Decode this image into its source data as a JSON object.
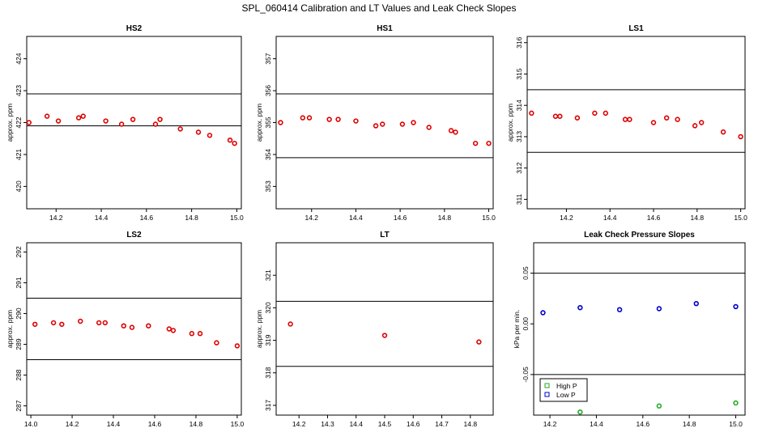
{
  "title": "SPL_060414  Calibration and LT Values and Leak Check Slopes",
  "chart_data": [
    {
      "type": "scatter",
      "title": "HS2",
      "ylabel": "approx. ppm",
      "xlim": [
        14.07,
        15.02
      ],
      "ylim": [
        419.3,
        424.7
      ],
      "xticks": [
        14.2,
        14.4,
        14.6,
        14.8,
        15.0
      ],
      "yticks": [
        420,
        421,
        422,
        423,
        424
      ],
      "hlines": [
        422.9,
        421.9
      ],
      "series": [
        {
          "color": "#dd0000",
          "marker": "circle",
          "x": [
            14.08,
            14.16,
            14.21,
            14.3,
            14.32,
            14.42,
            14.49,
            14.54,
            14.64,
            14.66,
            14.75,
            14.83,
            14.88,
            14.97,
            14.99
          ],
          "y": [
            422.0,
            422.2,
            422.05,
            422.15,
            422.2,
            422.05,
            421.95,
            422.1,
            421.95,
            422.1,
            421.8,
            421.7,
            421.6,
            421.45,
            421.35
          ]
        }
      ]
    },
    {
      "type": "scatter",
      "title": "HS1",
      "ylabel": "approx. ppm",
      "xlim": [
        14.04,
        15.02
      ],
      "ylim": [
        352.3,
        357.7
      ],
      "xticks": [
        14.2,
        14.4,
        14.6,
        14.8,
        15.0
      ],
      "yticks": [
        353,
        354,
        355,
        356,
        357
      ],
      "hlines": [
        355.9,
        353.9
      ],
      "series": [
        {
          "color": "#dd0000",
          "marker": "circle",
          "x": [
            14.06,
            14.16,
            14.19,
            14.28,
            14.32,
            14.4,
            14.49,
            14.52,
            14.61,
            14.66,
            14.73,
            14.83,
            14.85,
            14.94,
            15.0
          ],
          "y": [
            355.0,
            355.15,
            355.15,
            355.1,
            355.1,
            355.05,
            354.9,
            354.95,
            354.95,
            355.0,
            354.85,
            354.75,
            354.7,
            354.35,
            354.35
          ]
        }
      ]
    },
    {
      "type": "scatter",
      "title": "LS1",
      "ylabel": "approx. ppm",
      "xlim": [
        14.02,
        15.02
      ],
      "ylim": [
        310.7,
        316.2
      ],
      "xticks": [
        14.2,
        14.4,
        14.6,
        14.8,
        15.0
      ],
      "yticks": [
        311,
        312,
        313,
        314,
        315,
        316
      ],
      "hlines": [
        314.5,
        312.5
      ],
      "series": [
        {
          "color": "#dd0000",
          "marker": "circle",
          "x": [
            14.04,
            14.15,
            14.17,
            14.25,
            14.33,
            14.38,
            14.47,
            14.49,
            14.6,
            14.66,
            14.71,
            14.79,
            14.82,
            14.92,
            15.0
          ],
          "y": [
            313.75,
            313.65,
            313.65,
            313.6,
            313.75,
            313.75,
            313.55,
            313.55,
            313.45,
            313.6,
            313.55,
            313.35,
            313.45,
            313.15,
            313.0
          ]
        }
      ]
    },
    {
      "type": "scatter",
      "title": "LS2",
      "ylabel": "approx. ppm",
      "xlim": [
        13.98,
        15.02
      ],
      "ylim": [
        286.7,
        292.3
      ],
      "xticks": [
        14.0,
        14.2,
        14.4,
        14.6,
        14.8,
        15.0
      ],
      "yticks": [
        287,
        288,
        289,
        290,
        291,
        292
      ],
      "hlines": [
        290.5,
        288.5
      ],
      "series": [
        {
          "color": "#dd0000",
          "marker": "circle",
          "x": [
            14.02,
            14.11,
            14.15,
            14.24,
            14.33,
            14.36,
            14.45,
            14.49,
            14.57,
            14.67,
            14.69,
            14.78,
            14.82,
            14.9,
            15.0
          ],
          "y": [
            289.65,
            289.7,
            289.65,
            289.75,
            289.7,
            289.7,
            289.6,
            289.55,
            289.6,
            289.5,
            289.45,
            289.35,
            289.35,
            289.05,
            288.95
          ]
        }
      ]
    },
    {
      "type": "scatter",
      "title": "LT",
      "ylabel": "approx. ppm",
      "xlim": [
        14.12,
        14.88
      ],
      "ylim": [
        316.7,
        322.0
      ],
      "xticks": [
        14.2,
        14.3,
        14.4,
        14.5,
        14.6,
        14.7,
        14.8
      ],
      "yticks": [
        317,
        318,
        319,
        320,
        321
      ],
      "hlines": [
        320.2,
        318.2
      ],
      "series": [
        {
          "color": "#dd0000",
          "marker": "circle",
          "x": [
            14.17,
            14.5,
            14.83
          ],
          "y": [
            319.5,
            319.15,
            318.95
          ]
        }
      ]
    },
    {
      "type": "scatter",
      "title": "Leak Check Pressure Slopes",
      "ylabel": "kPa per min.",
      "xlim": [
        14.13,
        15.04
      ],
      "ylim": [
        -0.09,
        0.08
      ],
      "xticks": [
        14.2,
        14.4,
        14.6,
        14.8,
        15.0
      ],
      "yticks": [
        -0.05,
        0.0,
        0.05
      ],
      "hlines": [
        0.05,
        -0.05
      ],
      "legend": "bottom-left",
      "series": [
        {
          "name": "High P",
          "color": "#22aa22",
          "marker": "circle",
          "x": [
            14.33,
            14.67,
            15.0
          ],
          "y": [
            -0.087,
            -0.081,
            -0.078
          ]
        },
        {
          "name": "Low P",
          "color": "#0000cc",
          "marker": "circle",
          "x": [
            14.17,
            14.33,
            14.5,
            14.67,
            14.83,
            15.0
          ],
          "y": [
            0.011,
            0.016,
            0.014,
            0.015,
            0.02,
            0.017
          ]
        }
      ]
    }
  ]
}
